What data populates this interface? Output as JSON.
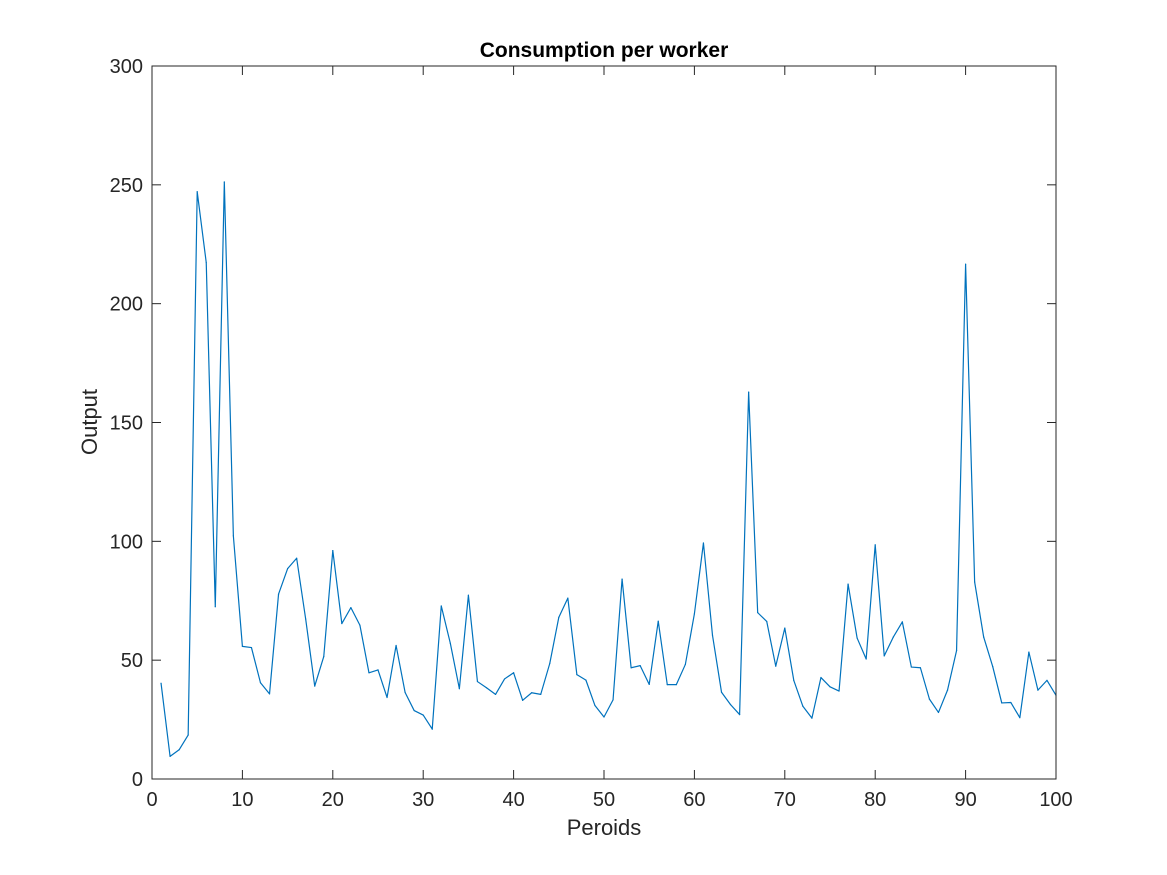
{
  "chart_data": {
    "type": "line",
    "title": "Consumption per worker",
    "xlabel": "Peroids",
    "ylabel": "Output",
    "xlim": [
      0,
      100
    ],
    "ylim": [
      0,
      300
    ],
    "xticks": [
      0,
      10,
      20,
      30,
      40,
      50,
      60,
      70,
      80,
      90,
      100
    ],
    "yticks": [
      0,
      50,
      100,
      150,
      200,
      250,
      300
    ],
    "grid": false,
    "line_color": "#0072BD",
    "x": [
      1,
      2,
      3,
      4,
      5,
      6,
      7,
      8,
      9,
      10,
      11,
      12,
      13,
      14,
      15,
      16,
      17,
      18,
      19,
      20,
      21,
      22,
      23,
      24,
      25,
      26,
      27,
      28,
      29,
      30,
      31,
      32,
      33,
      34,
      35,
      36,
      37,
      38,
      39,
      40,
      41,
      42,
      43,
      44,
      45,
      46,
      47,
      48,
      49,
      50,
      51,
      52,
      53,
      54,
      55,
      56,
      57,
      58,
      59,
      60,
      61,
      62,
      63,
      64,
      65,
      66,
      67,
      68,
      69,
      70,
      71,
      72,
      73,
      74,
      75,
      76,
      77,
      78,
      79,
      80,
      81,
      82,
      83,
      84,
      85,
      86,
      87,
      88,
      89,
      90,
      91,
      92,
      93,
      94,
      95,
      96,
      97,
      98,
      99,
      100
    ],
    "y": [
      40.3,
      9.5,
      12.3,
      18.5,
      247.1,
      217.3,
      72.5,
      251.2,
      102.3,
      55.8,
      55.3,
      40.5,
      35.8,
      77.8,
      88.5,
      92.9,
      67.3,
      39.1,
      51.5,
      96.1,
      65.4,
      72.1,
      64.7,
      44.7,
      45.9,
      34.3,
      56.2,
      36.4,
      28.8,
      26.9,
      21.0,
      72.8,
      57.1,
      38.0,
      77.3,
      41.0,
      38.4,
      35.6,
      42.1,
      44.7,
      33.1,
      36.3,
      35.6,
      48.6,
      68.0,
      76.1,
      43.9,
      41.6,
      30.9,
      26.1,
      33.3,
      84.1,
      46.8,
      47.7,
      39.8,
      66.4,
      39.7,
      39.7,
      48.2,
      69.5,
      99.3,
      60.5,
      36.5,
      31.3,
      27.1,
      162.8,
      70.0,
      66.3,
      47.5,
      63.5,
      41.4,
      30.6,
      25.6,
      42.7,
      38.8,
      37.0,
      82.0,
      59.3,
      50.5,
      98.5,
      51.8,
      59.7,
      66.1,
      47.1,
      46.8,
      33.6,
      28.0,
      37.4,
      54.0,
      216.6,
      82.9,
      59.7,
      47.3,
      32.0,
      32.2,
      25.8,
      53.4,
      37.4,
      41.5,
      35.2
    ]
  }
}
